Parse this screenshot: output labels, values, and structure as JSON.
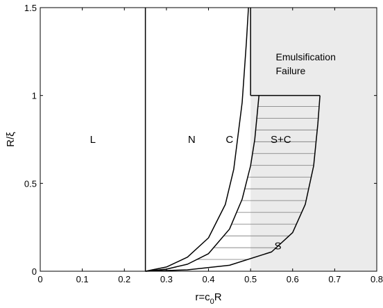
{
  "chart_data": {
    "type": "line",
    "title": "",
    "xlabel": "r=c0R",
    "xlabel_main": "r=c",
    "xlabel_sub": "0",
    "xlabel_tail": "R",
    "ylabel": "R/ξ",
    "xlim": [
      0,
      0.8
    ],
    "ylim": [
      0,
      1.5
    ],
    "xticks": [
      0,
      0.1,
      0.2,
      0.3,
      0.4,
      0.5,
      0.6,
      0.7,
      0.8
    ],
    "yticks": [
      0,
      0.5,
      1,
      1.5
    ],
    "xtick_labels": [
      "0",
      "0.1",
      "0.2",
      "0.3",
      "0.4",
      "0.5",
      "0.6",
      "0.7",
      "0.8"
    ],
    "ytick_labels": [
      "0",
      "0.5",
      "1",
      "1.5"
    ],
    "grid": false,
    "regions": [
      {
        "label": "L",
        "x": 0.125,
        "y": 0.75
      },
      {
        "label": "N",
        "x": 0.36,
        "y": 0.75
      },
      {
        "label": "C",
        "x": 0.45,
        "y": 0.75
      },
      {
        "label": "S+C",
        "x": 0.572,
        "y": 0.75
      },
      {
        "label": "S",
        "x": 0.565,
        "y": 0.145
      }
    ],
    "annotation": {
      "lines": [
        "Emulsification",
        "Failure"
      ],
      "x": 0.56,
      "y": 1.2
    },
    "emulsification_failure_region": {
      "x_from": 0.5,
      "x_to": 0.8,
      "y_from": 0,
      "y_to": 1.5,
      "color": "#ebebeb"
    },
    "boundaries": [
      {
        "points": [
          [
            0.25,
            0
          ],
          [
            0.25,
            1.5
          ]
        ]
      },
      {
        "points": [
          [
            0.25,
            0
          ],
          [
            0.3,
            0.024
          ],
          [
            0.35,
            0.08
          ],
          [
            0.4,
            0.19
          ],
          [
            0.44,
            0.38
          ],
          [
            0.46,
            0.58
          ],
          [
            0.48,
            0.96
          ],
          [
            0.49,
            1.3
          ],
          [
            0.495,
            1.5
          ]
        ]
      },
      {
        "points": [
          [
            0.25,
            0
          ],
          [
            0.3,
            0.012
          ],
          [
            0.35,
            0.04
          ],
          [
            0.4,
            0.1
          ],
          [
            0.45,
            0.24
          ],
          [
            0.48,
            0.41
          ],
          [
            0.5,
            0.6
          ],
          [
            0.51,
            0.75
          ],
          [
            0.52,
            1.0
          ]
        ]
      },
      {
        "points": [
          [
            0.25,
            0
          ],
          [
            0.35,
            0.008
          ],
          [
            0.45,
            0.034
          ],
          [
            0.55,
            0.11
          ],
          [
            0.6,
            0.22
          ],
          [
            0.63,
            0.38
          ],
          [
            0.65,
            0.6
          ],
          [
            0.66,
            0.84
          ],
          [
            0.665,
            1.0
          ]
        ]
      },
      {
        "points": [
          [
            0.5,
            1.5
          ],
          [
            0.5,
            1.0
          ]
        ]
      },
      {
        "points": [
          [
            0.5,
            1.0
          ],
          [
            0.665,
            1.0
          ]
        ]
      }
    ],
    "hatched_region": {
      "between": [
        2,
        3
      ],
      "y_step": 0.067,
      "y_max": 1.0,
      "color": "#777777"
    }
  }
}
